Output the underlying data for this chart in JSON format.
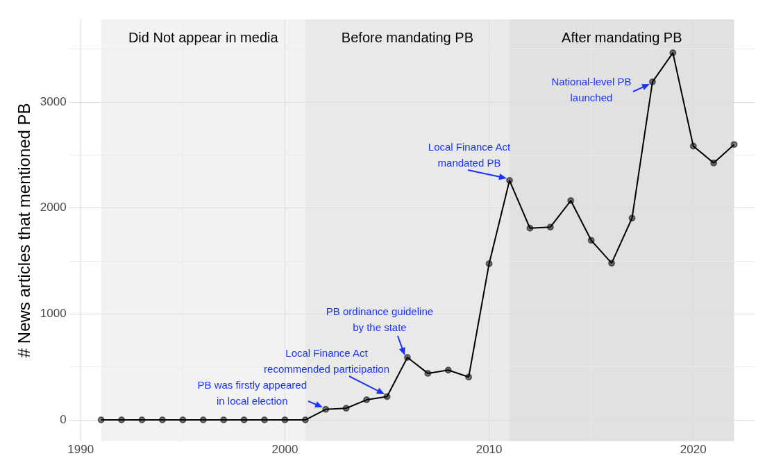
{
  "chart_data": {
    "type": "line",
    "ylabel": "# News articles that mentioned PB",
    "x": [
      1991,
      1992,
      1993,
      1994,
      1995,
      1996,
      1997,
      1998,
      1999,
      2000,
      2001,
      2002,
      2003,
      2004,
      2005,
      2006,
      2007,
      2008,
      2009,
      2010,
      2011,
      2012,
      2013,
      2014,
      2015,
      2016,
      2017,
      2018,
      2019,
      2020,
      2021,
      2022
    ],
    "series": [
      {
        "color": "#000000",
        "values": [
          0,
          0,
          0,
          0,
          0,
          0,
          0,
          0,
          0,
          0,
          0,
          100,
          110,
          190,
          220,
          590,
          440,
          470,
          405,
          1475,
          2260,
          1810,
          1820,
          2070,
          1695,
          1480,
          1905,
          3190,
          3465,
          2585,
          2425,
          2600
        ]
      }
    ],
    "xlim": [
      1989.4,
      2023.0
    ],
    "ylim": [
      -200,
      3780
    ],
    "xticks": [
      1990,
      {
        "value": 1995,
        "label": null
      },
      2000,
      {
        "value": 2005,
        "label": null
      },
      2010,
      {
        "value": 2015,
        "label": null
      },
      2020
    ],
    "yticks": [
      0,
      {
        "value": 500,
        "label": null
      },
      1000,
      {
        "value": 1500,
        "label": null
      },
      2000,
      {
        "value": 2500,
        "label": null
      },
      3000,
      {
        "value": 3500,
        "label": null
      }
    ],
    "bands": [
      {
        "axis": "x",
        "from": 1991,
        "to": 2001,
        "label": "Did Not appear in media",
        "color": "#f2f2f2"
      },
      {
        "axis": "x",
        "from": 2001,
        "to": 2011,
        "label": "Before mandating PB",
        "color": "#e9e9e9"
      },
      {
        "axis": "x",
        "from": 2011,
        "to": 2022,
        "label": "After mandating PB",
        "color": "#e1e1e1"
      }
    ],
    "annotations": [
      {
        "text": "PB was firstly appeared\nin local election",
        "x": 2002,
        "y": 100
      },
      {
        "text": "Local Finance Act\nrecommended participation",
        "x": 2005,
        "y": 220
      },
      {
        "text": "PB ordinance guideline\nby the state",
        "x": 2006,
        "y": 590
      },
      {
        "text": "Local Finance Act\nmandated PB",
        "x": 2011,
        "y": 2260
      },
      {
        "text": "National-level PB\nlaunched",
        "x": 2018,
        "y": 3190
      }
    ],
    "grid": true,
    "marker": "circle",
    "line_style": "solid",
    "legend": false
  }
}
